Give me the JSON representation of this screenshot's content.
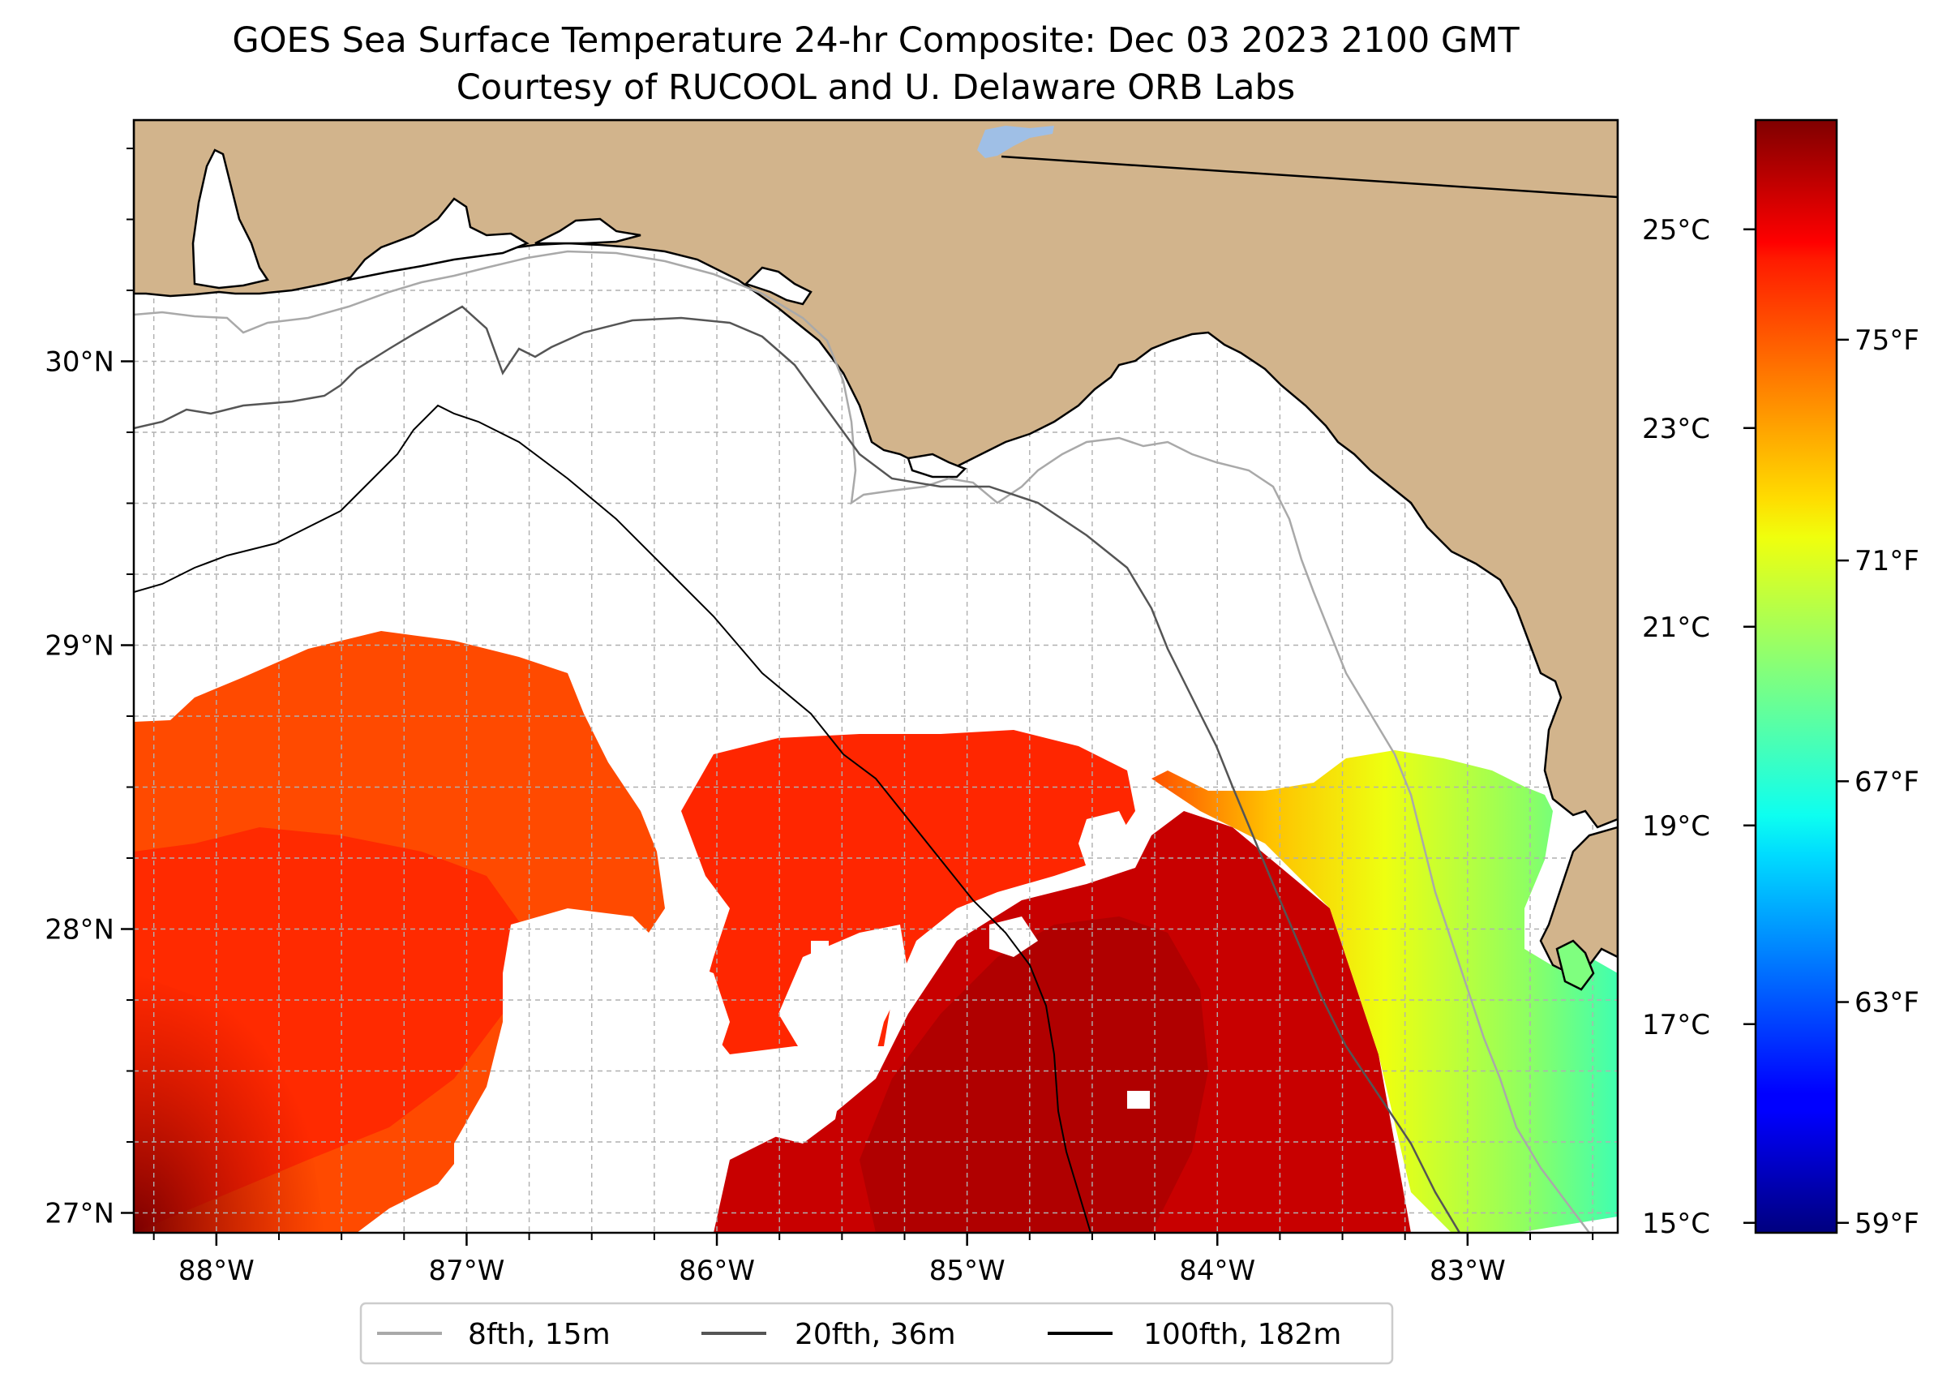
{
  "title": {
    "line1": "GOES Sea Surface Temperature 24-hr Composite: Dec 03 2023 2100 GMT",
    "line2": "Courtesy of RUCOOL and U. Delaware ORB Labs"
  },
  "map": {
    "lon_range": [
      -88.33,
      -82.4
    ],
    "lat_range": [
      26.93,
      30.85
    ],
    "lon_ticks": [
      {
        "value": -88,
        "label": "88°W"
      },
      {
        "value": -87,
        "label": "87°W"
      },
      {
        "value": -86,
        "label": "86°W"
      },
      {
        "value": -85,
        "label": "85°W"
      },
      {
        "value": -84,
        "label": "84°W"
      },
      {
        "value": -83,
        "label": "83°W"
      }
    ],
    "lat_ticks": [
      {
        "value": 27,
        "label": "27°N"
      },
      {
        "value": 28,
        "label": "28°N"
      },
      {
        "value": 29,
        "label": "29°N"
      },
      {
        "value": 30,
        "label": "30°N"
      }
    ],
    "gridlines": true,
    "colors": {
      "land": "#d2b48c",
      "ocean_no_data": "#ffffff",
      "lake": "#9fbfe6",
      "coastline": "#000000"
    }
  },
  "legend": {
    "placement": "bottom-center",
    "items": [
      {
        "label": "8fth, 15m",
        "color": "#a9a9a9"
      },
      {
        "label": "20fth, 36m",
        "color": "#555555"
      },
      {
        "label": "100fth, 182m",
        "color": "#000000"
      }
    ]
  },
  "colorbar": {
    "colormap": "jet",
    "range_c": [
      14.9,
      26.1
    ],
    "celsius_ticks": [
      {
        "value": 15,
        "label": "15°C"
      },
      {
        "value": 17,
        "label": "17°C"
      },
      {
        "value": 19,
        "label": "19°C"
      },
      {
        "value": 21,
        "label": "21°C"
      },
      {
        "value": 23,
        "label": "23°C"
      },
      {
        "value": 25,
        "label": "25°C"
      }
    ],
    "fahrenheit_ticks": [
      {
        "value": 59,
        "label": "59°F"
      },
      {
        "value": 63,
        "label": "63°F"
      },
      {
        "value": 67,
        "label": "67°F"
      },
      {
        "value": 71,
        "label": "71°F"
      },
      {
        "value": 75,
        "label": "75°F"
      }
    ]
  },
  "chart_data": {
    "type": "heatmap",
    "variable": "sea surface temperature (°C)",
    "x_units": "degrees longitude",
    "y_units": "degrees latitude",
    "regions": [
      {
        "lon": [
          -88.3,
          -86.6
        ],
        "lat": [
          27.0,
          28.7
        ],
        "value": 25.4
      },
      {
        "lon": [
          -86.0,
          -84.4
        ],
        "lat": [
          27.6,
          28.6
        ],
        "value": 25.2
      },
      {
        "lon": [
          -85.0,
          -84.0
        ],
        "lat": [
          27.0,
          28.1
        ],
        "value": 25.8
      },
      {
        "lon": [
          -84.0,
          -83.6
        ],
        "lat": [
          27.0,
          28.4
        ],
        "value": 24.5
      },
      {
        "lon": [
          -83.6,
          -83.2
        ],
        "lat": [
          27.2,
          28.5
        ],
        "value": 22.5
      },
      {
        "lon": [
          -83.2,
          -82.8
        ],
        "lat": [
          27.3,
          28.6
        ],
        "value": 21.0
      },
      {
        "lon": [
          -82.8,
          -82.6
        ],
        "lat": [
          27.6,
          28.5
        ],
        "value": 20.0
      }
    ]
  }
}
